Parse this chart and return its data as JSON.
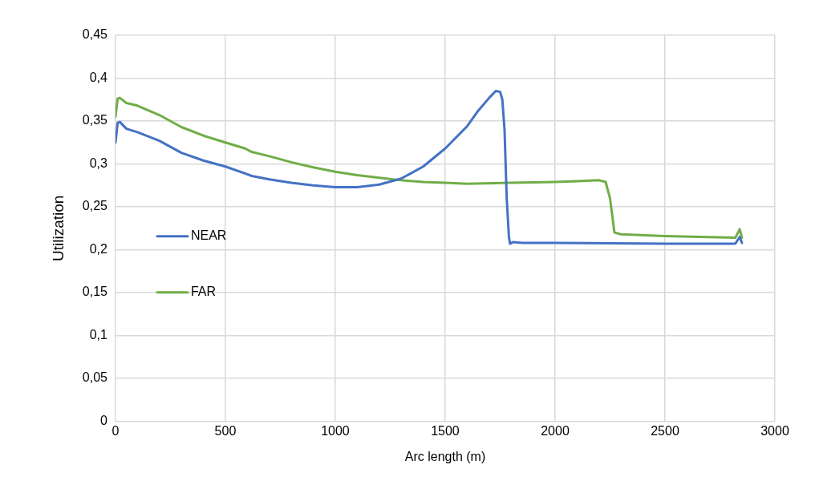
{
  "chart_data": {
    "type": "line",
    "xlabel": "Arc length (m)",
    "ylabel": "Utilization",
    "xlim": [
      0,
      3000
    ],
    "xticks": [
      0,
      500,
      1000,
      1500,
      2000,
      2500,
      3000
    ],
    "ylim": [
      0,
      0.45
    ],
    "yticks": [
      {
        "value": 0,
        "label": "0"
      },
      {
        "value": 0.05,
        "label": "0,05"
      },
      {
        "value": 0.1,
        "label": "0,1"
      },
      {
        "value": 0.15,
        "label": "0,15"
      },
      {
        "value": 0.2,
        "label": "0,2"
      },
      {
        "value": 0.25,
        "label": "0,25"
      },
      {
        "value": 0.3,
        "label": "0,3"
      },
      {
        "value": 0.35,
        "label": "0,35"
      },
      {
        "value": 0.4,
        "label": "0,4"
      },
      {
        "value": 0.45,
        "label": "0,45"
      }
    ],
    "grid": true,
    "legend": "left",
    "marker": "none",
    "line_style": "solid",
    "series": [
      {
        "name": "NEAR",
        "color": "#4472c4",
        "x": [
          0,
          10,
          20,
          50,
          100,
          200,
          300,
          400,
          500,
          600,
          620,
          700,
          800,
          900,
          1000,
          1100,
          1200,
          1300,
          1400,
          1500,
          1600,
          1650,
          1700,
          1730,
          1750,
          1760,
          1770,
          1780,
          1790,
          1795,
          1810,
          1850,
          2000,
          2500,
          2820,
          2840,
          2850
        ],
        "values": [
          0.325,
          0.348,
          0.349,
          0.341,
          0.337,
          0.327,
          0.313,
          0.304,
          0.297,
          0.288,
          0.286,
          0.282,
          0.278,
          0.275,
          0.273,
          0.273,
          0.276,
          0.283,
          0.297,
          0.318,
          0.344,
          0.362,
          0.377,
          0.385,
          0.384,
          0.375,
          0.34,
          0.26,
          0.215,
          0.207,
          0.209,
          0.208,
          0.208,
          0.207,
          0.207,
          0.215,
          0.208
        ]
      },
      {
        "name": "FAR",
        "color": "#70ad47",
        "x": [
          0,
          10,
          20,
          50,
          100,
          200,
          300,
          400,
          500,
          590,
          620,
          700,
          800,
          900,
          1000,
          1100,
          1200,
          1300,
          1400,
          1500,
          1600,
          1800,
          2000,
          2100,
          2200,
          2230,
          2250,
          2270,
          2300,
          2500,
          2820,
          2840,
          2850
        ],
        "values": [
          0.355,
          0.376,
          0.377,
          0.371,
          0.368,
          0.357,
          0.343,
          0.333,
          0.325,
          0.318,
          0.314,
          0.309,
          0.302,
          0.296,
          0.291,
          0.287,
          0.284,
          0.281,
          0.279,
          0.278,
          0.277,
          0.278,
          0.279,
          0.28,
          0.281,
          0.279,
          0.26,
          0.22,
          0.218,
          0.216,
          0.214,
          0.224,
          0.214
        ]
      }
    ]
  }
}
